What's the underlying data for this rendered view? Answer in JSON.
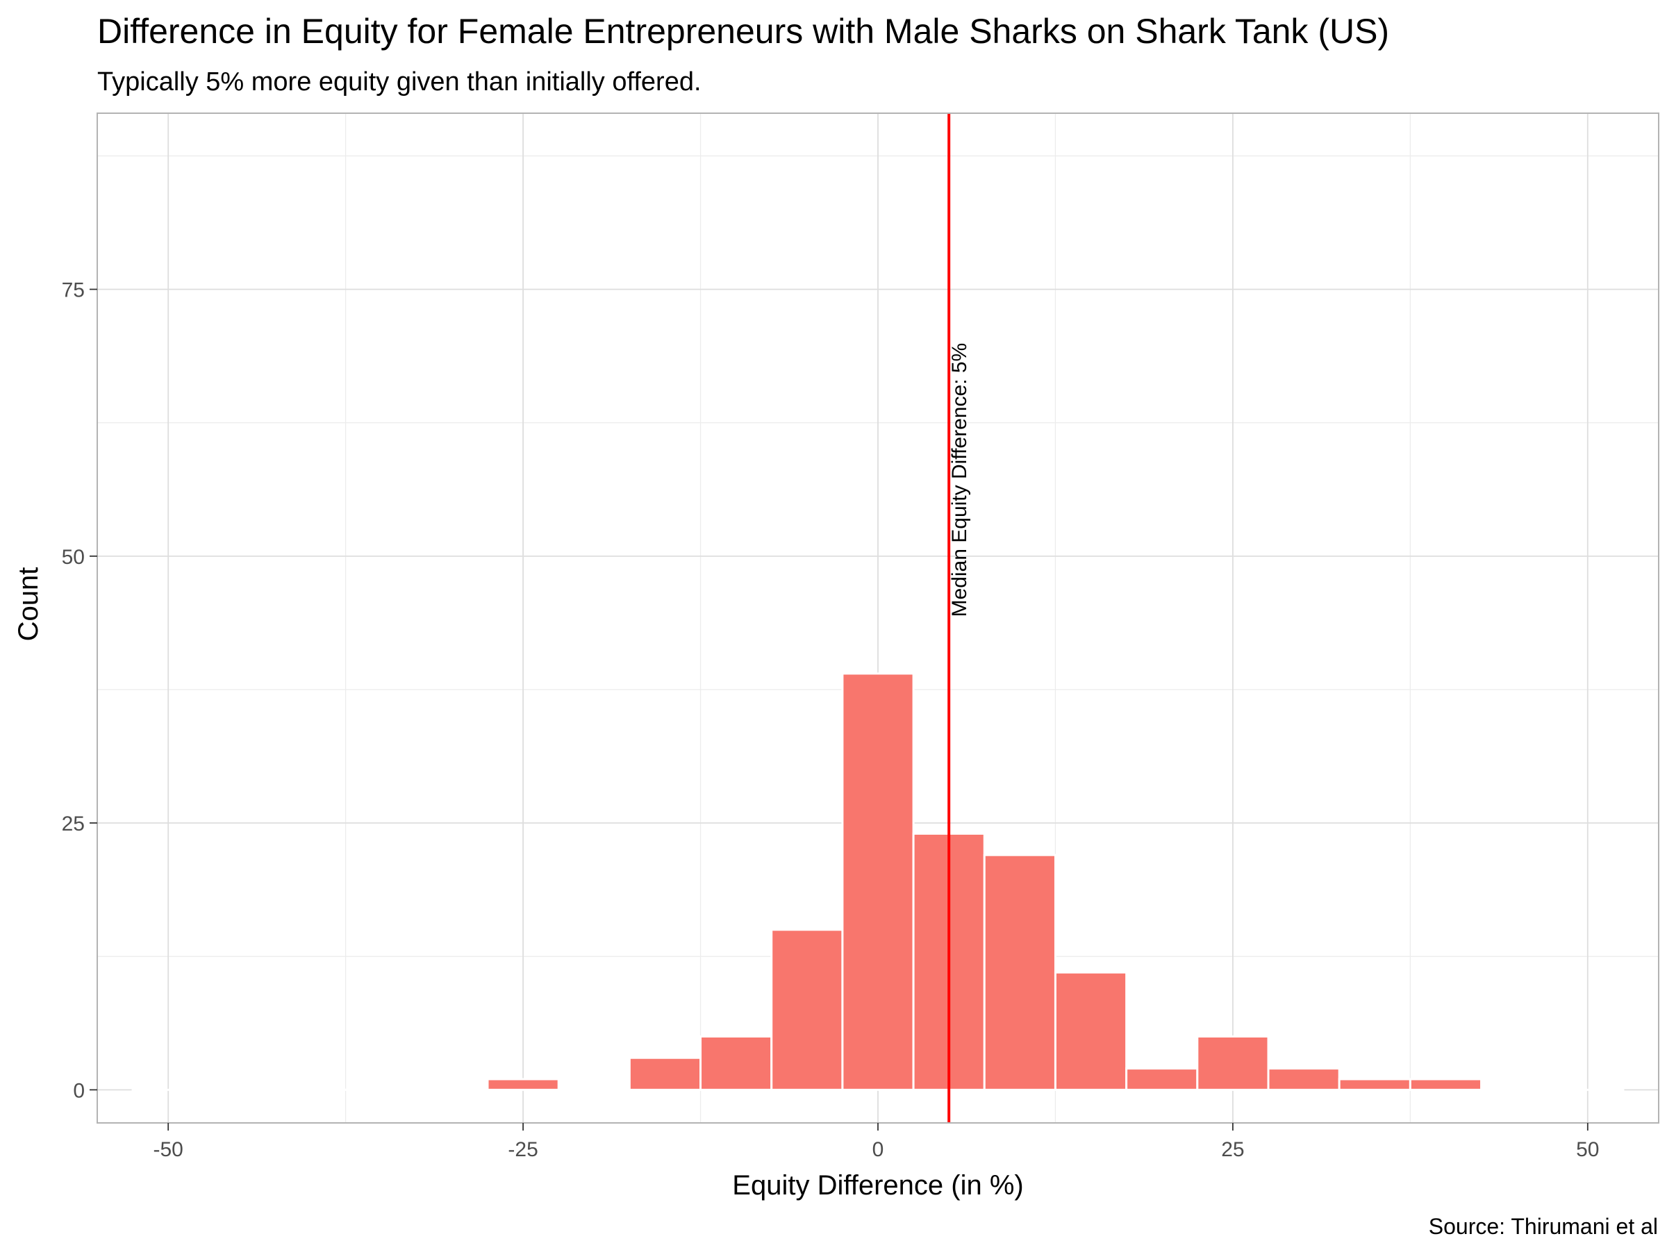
{
  "chart_data": {
    "type": "bar",
    "subtype": "histogram",
    "title": "Difference in Equity for Female Entrepreneurs with Male Sharks on Shark Tank (US)",
    "subtitle": "Typically 5% more equity given than initially offered.",
    "xlabel": "Equity Difference (in %)",
    "ylabel": "Count",
    "caption": "Source: Thirumani et al",
    "xlim": [
      -55,
      55
    ],
    "ylim": [
      -3.1,
      91.5
    ],
    "x_ticks": [
      -50,
      -25,
      0,
      25,
      50
    ],
    "x_tick_labels": [
      "-50",
      "-25",
      "0",
      "25",
      "50"
    ],
    "y_ticks": [
      0,
      25,
      50,
      75
    ],
    "y_tick_labels": [
      "0",
      "25",
      "50",
      "75"
    ],
    "grid": true,
    "bin_width": 5,
    "bins": [
      {
        "center": -50,
        "count": 0
      },
      {
        "center": -45,
        "count": 0
      },
      {
        "center": -40,
        "count": 0
      },
      {
        "center": -35,
        "count": 0
      },
      {
        "center": -30,
        "count": 0
      },
      {
        "center": -25,
        "count": 1
      },
      {
        "center": -20,
        "count": 0
      },
      {
        "center": -15,
        "count": 3
      },
      {
        "center": -10,
        "count": 5
      },
      {
        "center": -5,
        "count": 15
      },
      {
        "center": 0,
        "count": 39
      },
      {
        "center": 5,
        "count": 24
      },
      {
        "center": 10,
        "count": 22
      },
      {
        "center": 15,
        "count": 11
      },
      {
        "center": 20,
        "count": 2
      },
      {
        "center": 25,
        "count": 5
      },
      {
        "center": 30,
        "count": 2
      },
      {
        "center": 35,
        "count": 1
      },
      {
        "center": 40,
        "count": 1
      },
      {
        "center": 45,
        "count": 0
      },
      {
        "center": 50,
        "count": 0
      }
    ],
    "median_line": {
      "x": 5,
      "label": "Median Equity Difference: 5%",
      "color": "#ff0000"
    },
    "colors": {
      "bar_fill": "#f8766d",
      "bar_outline": "#ffffff",
      "grid_major": "#dedede",
      "grid_minor": "#ececec",
      "panel_border": "#b3b3b3"
    }
  }
}
